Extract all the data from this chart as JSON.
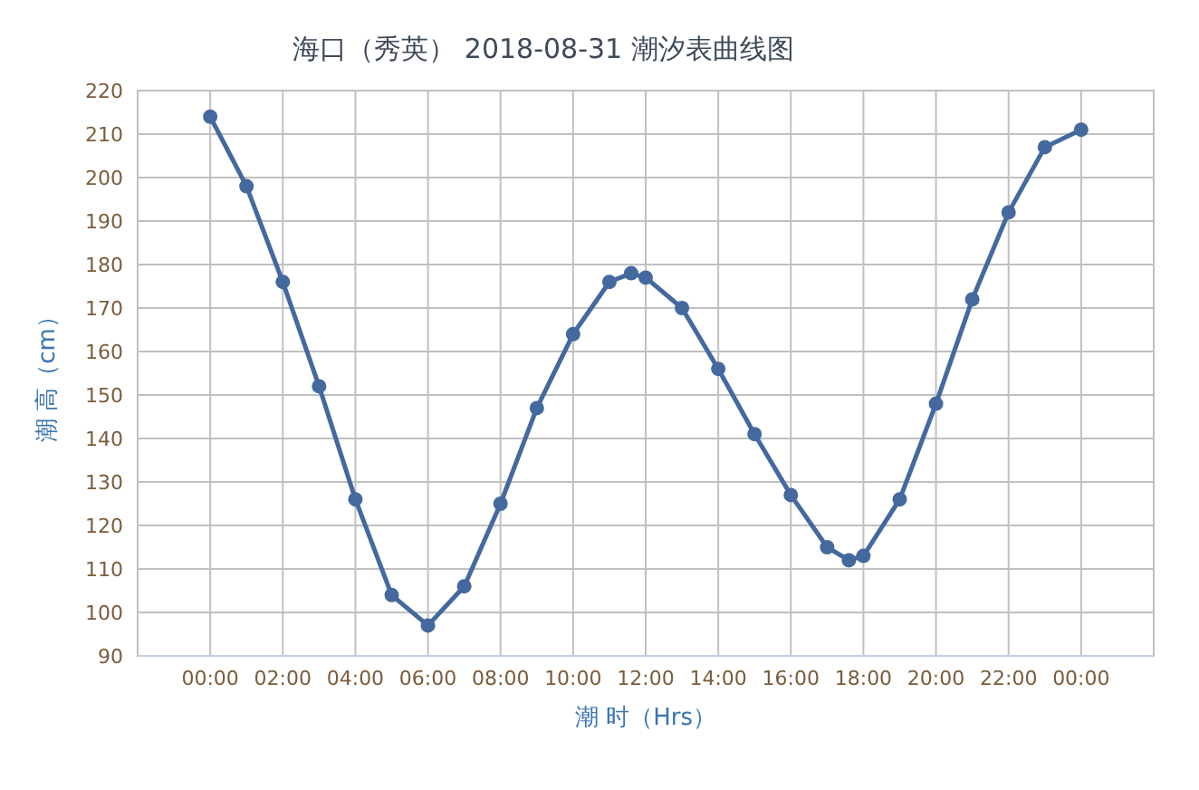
{
  "chart_data": {
    "type": "line",
    "title": "海口（秀英） 2018-08-31 潮汐表曲线图",
    "xlabel": "潮 时（Hrs）",
    "ylabel": "潮 高（cm）",
    "xlim": [
      -2,
      26
    ],
    "ylim": [
      90,
      220
    ],
    "xticks": [
      {
        "value": 0,
        "label": "00:00"
      },
      {
        "value": 2,
        "label": "02:00"
      },
      {
        "value": 4,
        "label": "04:00"
      },
      {
        "value": 6,
        "label": "06:00"
      },
      {
        "value": 8,
        "label": "08:00"
      },
      {
        "value": 10,
        "label": "10:00"
      },
      {
        "value": 12,
        "label": "12:00"
      },
      {
        "value": 14,
        "label": "14:00"
      },
      {
        "value": 16,
        "label": "16:00"
      },
      {
        "value": 18,
        "label": "18:00"
      },
      {
        "value": 20,
        "label": "20:00"
      },
      {
        "value": 22,
        "label": "22:00"
      },
      {
        "value": 24,
        "label": "00:00"
      }
    ],
    "yticks": [
      90,
      100,
      110,
      120,
      130,
      140,
      150,
      160,
      170,
      180,
      190,
      200,
      210,
      220
    ],
    "grid": true,
    "marker": "circle",
    "line_style": "solid",
    "x": [
      0,
      1,
      2,
      3,
      4,
      5,
      6,
      7,
      8,
      9,
      10,
      11,
      11.6,
      12,
      13,
      14,
      15,
      16,
      17,
      17.6,
      18,
      19,
      20,
      21,
      22,
      23,
      24
    ],
    "series": [
      {
        "color": "#44699e",
        "values": [
          214,
          198,
          176,
          152,
          126,
          104,
          97,
          106,
          125,
          147,
          164,
          176,
          178,
          177,
          170,
          156,
          141,
          127,
          115,
          112,
          113,
          126,
          148,
          172,
          192,
          207,
          211
        ]
      }
    ]
  }
}
